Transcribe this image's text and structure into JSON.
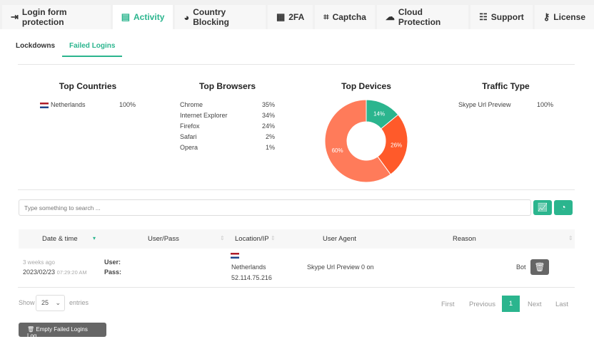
{
  "tabs": [
    {
      "label": "Login form protection",
      "icon": "login-icon",
      "glyph": "⇥"
    },
    {
      "label": "Activity",
      "icon": "document-icon",
      "glyph": "▤",
      "active": true
    },
    {
      "label": "Country Blocking",
      "icon": "globe-icon",
      "glyph": "◕"
    },
    {
      "label": "2FA",
      "icon": "keypad-icon",
      "glyph": "▦"
    },
    {
      "label": "Captcha",
      "icon": "captcha-icon",
      "glyph": "⌗"
    },
    {
      "label": "Cloud Protection",
      "icon": "cloud-icon",
      "glyph": "☁"
    },
    {
      "label": "Support",
      "icon": "sitemap-icon",
      "glyph": "☷"
    },
    {
      "label": "License",
      "icon": "key-icon",
      "glyph": "⚷"
    }
  ],
  "subtabs": [
    "Lockdowns",
    "Failed Logins"
  ],
  "stats": {
    "countries": {
      "title": "Top Countries",
      "rows": [
        {
          "name": "Netherlands",
          "value": "100%"
        }
      ]
    },
    "browsers": {
      "title": "Top Browsers",
      "rows": [
        {
          "name": "Chrome",
          "value": "35%"
        },
        {
          "name": "Internet Explorer",
          "value": "34%"
        },
        {
          "name": "Firefox",
          "value": "24%"
        },
        {
          "name": "Safari",
          "value": "2%"
        },
        {
          "name": "Opera",
          "value": "1%"
        }
      ]
    },
    "devices": {
      "title": "Top Devices"
    },
    "traffic": {
      "title": "Traffic Type",
      "rows": [
        {
          "name": "Skype Url Preview",
          "value": "100%"
        }
      ]
    }
  },
  "chart_data": {
    "type": "pie",
    "donut": true,
    "values": [
      14,
      26,
      60
    ],
    "labels": [
      "14%",
      "26%",
      "60%"
    ],
    "colors": [
      "#2bb58e",
      "#ff5a2a",
      "#ff7b5a"
    ]
  },
  "search": {
    "placeholder": "Type something to search ..."
  },
  "table": {
    "headers": [
      "Date & time",
      "User/Pass",
      "Location/IP",
      "User Agent",
      "Reason"
    ],
    "row": {
      "ago": "3 weeks ago",
      "date": "2023/02/23",
      "time": "07:29:20 AM",
      "user": "User:",
      "pass": "Pass:",
      "country": "Netherlands",
      "ip": "52.114.75.216",
      "agent": "Skype Url Preview 0 on",
      "reason": "Bot"
    }
  },
  "footer": {
    "show": "Show",
    "entries_value": "25",
    "entries": "entries",
    "first": "First",
    "previous": "Previous",
    "page": "1",
    "next": "Next",
    "last": "Last"
  },
  "empty_button": "Empty Failed Logins Log"
}
